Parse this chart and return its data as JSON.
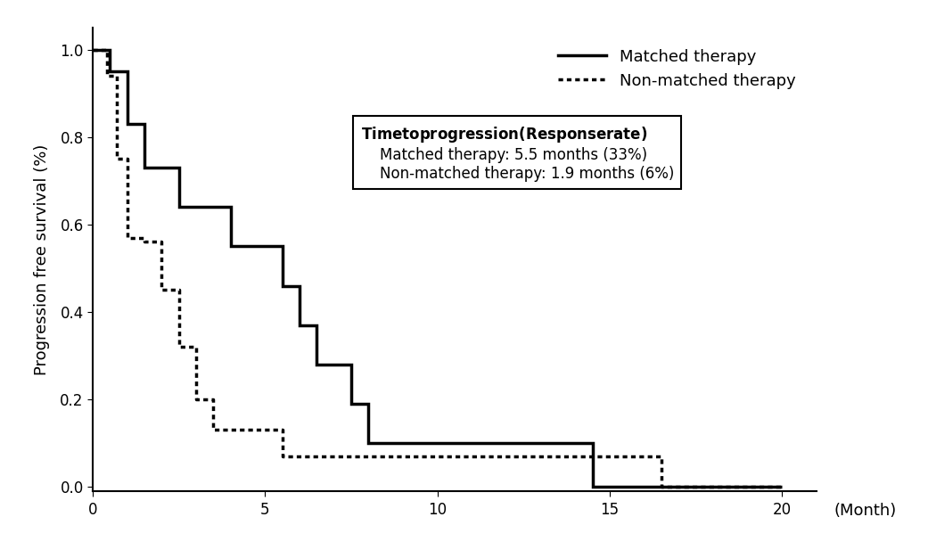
{
  "matched_steps": [
    [
      0,
      1.0
    ],
    [
      0.5,
      1.0
    ],
    [
      0.5,
      0.95
    ],
    [
      1.0,
      0.95
    ],
    [
      1.0,
      0.83
    ],
    [
      1.5,
      0.83
    ],
    [
      1.5,
      0.73
    ],
    [
      2.5,
      0.73
    ],
    [
      2.5,
      0.64
    ],
    [
      4.0,
      0.64
    ],
    [
      4.0,
      0.55
    ],
    [
      5.5,
      0.55
    ],
    [
      5.5,
      0.46
    ],
    [
      6.0,
      0.46
    ],
    [
      6.0,
      0.37
    ],
    [
      6.5,
      0.37
    ],
    [
      6.5,
      0.28
    ],
    [
      7.5,
      0.28
    ],
    [
      7.5,
      0.19
    ],
    [
      8.0,
      0.19
    ],
    [
      8.0,
      0.1
    ],
    [
      14.5,
      0.1
    ],
    [
      14.5,
      0.0
    ],
    [
      20,
      0.0
    ]
  ],
  "nonmatched_steps": [
    [
      0,
      1.0
    ],
    [
      0.4,
      1.0
    ],
    [
      0.4,
      0.94
    ],
    [
      0.7,
      0.94
    ],
    [
      0.7,
      0.75
    ],
    [
      1.0,
      0.75
    ],
    [
      1.0,
      0.57
    ],
    [
      1.5,
      0.57
    ],
    [
      1.5,
      0.56
    ],
    [
      2.0,
      0.56
    ],
    [
      2.0,
      0.45
    ],
    [
      2.5,
      0.45
    ],
    [
      2.5,
      0.32
    ],
    [
      3.0,
      0.32
    ],
    [
      3.0,
      0.2
    ],
    [
      3.5,
      0.2
    ],
    [
      3.5,
      0.13
    ],
    [
      5.5,
      0.13
    ],
    [
      5.5,
      0.07
    ],
    [
      15.5,
      0.07
    ],
    [
      15.5,
      0.07
    ],
    [
      16.5,
      0.07
    ],
    [
      16.5,
      0.0
    ],
    [
      20,
      0.0
    ]
  ],
  "ylabel": "Progression free survival (%)",
  "xlim": [
    0,
    21
  ],
  "ylim": [
    -0.01,
    1.05
  ],
  "xticks": [
    0,
    5,
    10,
    15,
    20
  ],
  "yticks": [
    0.0,
    0.2,
    0.4,
    0.6,
    0.8,
    1.0
  ],
  "legend_matched": "Matched therapy",
  "legend_nonmatched": "Non-matched therapy",
  "annotation_title": "Time to progression (Response rate)",
  "annotation_line1": "Matched therapy: 5.5 months (33%)",
  "annotation_line2": "Non-matched therapy: 1.9 months (6%)",
  "line_color": "#000000",
  "bg_color": "#ffffff",
  "linewidth": 2.5,
  "fontsize_axis": 13,
  "fontsize_tick": 12,
  "fontsize_legend": 13,
  "fontsize_annot": 12
}
